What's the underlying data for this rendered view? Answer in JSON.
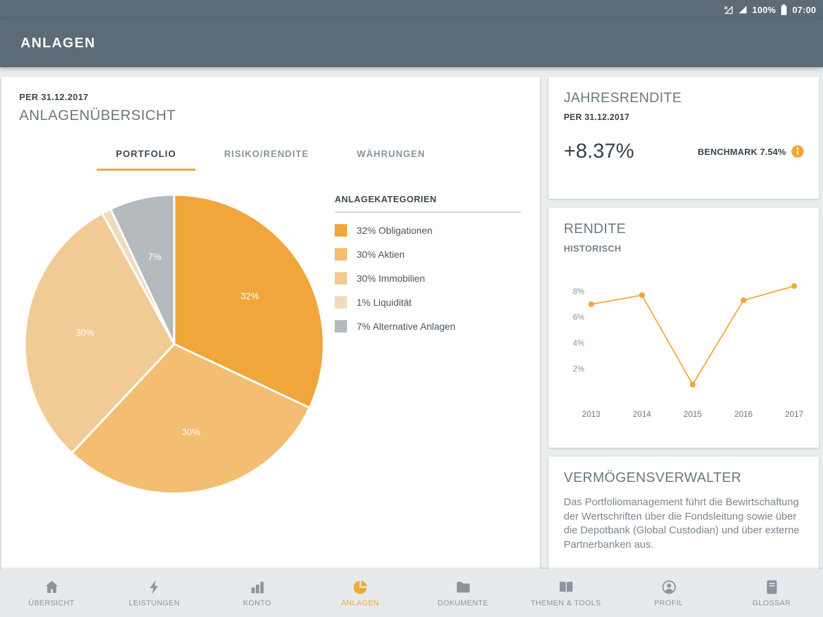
{
  "accent_color": "#f2a738",
  "status_bar": {
    "battery_percent": "100%",
    "time": "07:00"
  },
  "app_bar": {
    "title": "ANLAGEN"
  },
  "overview_card": {
    "date_label": "PER 31.12.2017",
    "title": "ANLAGENÜBERSICHT",
    "tabs": [
      {
        "label": "PORTFOLIO",
        "active": true
      },
      {
        "label": "RISIKO/RENDITE",
        "active": false
      },
      {
        "label": "WÄHRUNGEN",
        "active": false
      }
    ],
    "legend_title": "ANLAGEKATEGORIEN",
    "legend_items": [
      "32% Obligationen",
      "30% Aktien",
      "30% Immobilien",
      "1% Liquidität",
      "7% Alternative Anlagen"
    ]
  },
  "jahresrendite_card": {
    "title": "JAHRESRENDITE",
    "date_label": "PER 31.12.2017",
    "value": "+8.37%",
    "benchmark_label": "BENCHMARK 7.54%"
  },
  "rendite_card": {
    "title": "RENDITE",
    "subtitle": "HISTORISCH"
  },
  "verwalter_card": {
    "title": "VERMÖGENSVERWALTER",
    "body": "Das Portfoliomanagement führt die Bewirtschaftung der Wertschriften über die Fondsleitung sowie über die Depotbank (Global Custodian) und über externe Partnerbanken aus."
  },
  "bottom_nav": {
    "items": [
      {
        "label": "ÜBERSICHT",
        "icon": "home-icon",
        "active": false
      },
      {
        "label": "LEISTUNGEN",
        "icon": "bolt-icon",
        "active": false
      },
      {
        "label": "KONTO",
        "icon": "bar-chart-icon",
        "active": false
      },
      {
        "label": "ANLAGEN",
        "icon": "pie-chart-icon",
        "active": true
      },
      {
        "label": "DOKUMENTE",
        "icon": "folder-icon",
        "active": false
      },
      {
        "label": "THEMEN & TOOLS",
        "icon": "open-book-icon",
        "active": false
      },
      {
        "label": "PROFIL",
        "icon": "person-icon",
        "active": false
      },
      {
        "label": "GLOSSAR",
        "icon": "book-icon",
        "active": false
      }
    ]
  },
  "chart_data": [
    {
      "type": "pie",
      "title": "ANLAGEKATEGORIEN",
      "labels": [
        "Obligationen",
        "Aktien",
        "Immobilien",
        "Liquidität",
        "Alternative Anlagen"
      ],
      "values": [
        32,
        30,
        30,
        1,
        7
      ],
      "unit": "%",
      "colors": [
        "#f0a63a",
        "#f3bd72",
        "#f1cb96",
        "#eedcbd",
        "#b4babd"
      ],
      "slice_labels": [
        "32%",
        "30%",
        "30%",
        "",
        "7%"
      ],
      "start_angle_deg": 0,
      "direction": "clockwise"
    },
    {
      "type": "line",
      "title": "RENDITE HISTORISCH",
      "x": [
        "2013",
        "2014",
        "2015",
        "2016",
        "2017"
      ],
      "values": [
        7.0,
        7.7,
        0.8,
        7.3,
        8.4
      ],
      "unit": "%",
      "ylim": [
        0,
        9
      ],
      "yticks": [
        2,
        4,
        6,
        8
      ],
      "color": "#f2a738",
      "grid": false,
      "legend": "none"
    }
  ]
}
